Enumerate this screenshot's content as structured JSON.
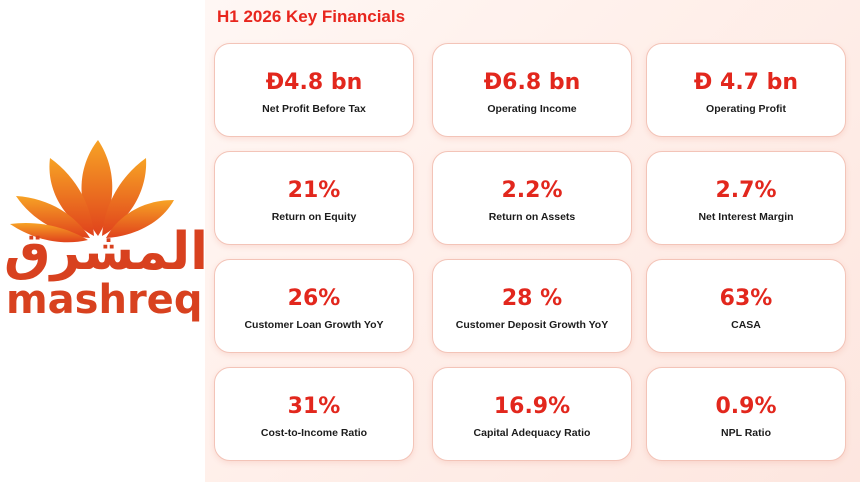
{
  "brand": {
    "name_ar": "المشرق",
    "name_en": "mashreq",
    "accent": "#e2271d",
    "logo_color": "#d8411f"
  },
  "title": "H1 2026 Key Financials",
  "metrics": [
    {
      "value": "Đ4.8 bn",
      "label": "Net Profit Before Tax"
    },
    {
      "value": "Đ6.8 bn",
      "label": "Operating Income"
    },
    {
      "value": "Đ 4.7 bn",
      "label": "Operating Profit"
    },
    {
      "value": "21%",
      "label": "Return on Equity"
    },
    {
      "value": "2.2%",
      "label": "Return on Assets"
    },
    {
      "value": "2.7%",
      "label": "Net Interest Margin"
    },
    {
      "value": "26%",
      "label": "Customer Loan Growth YoY"
    },
    {
      "value": "28 %",
      "label": "Customer Deposit Growth YoY"
    },
    {
      "value": "63%",
      "label": "CASA"
    },
    {
      "value": "31%",
      "label": "Cost-to-Income Ratio"
    },
    {
      "value": "16.9%",
      "label": "Capital Adequacy Ratio"
    },
    {
      "value": "0.9%",
      "label": "NPL Ratio"
    }
  ]
}
